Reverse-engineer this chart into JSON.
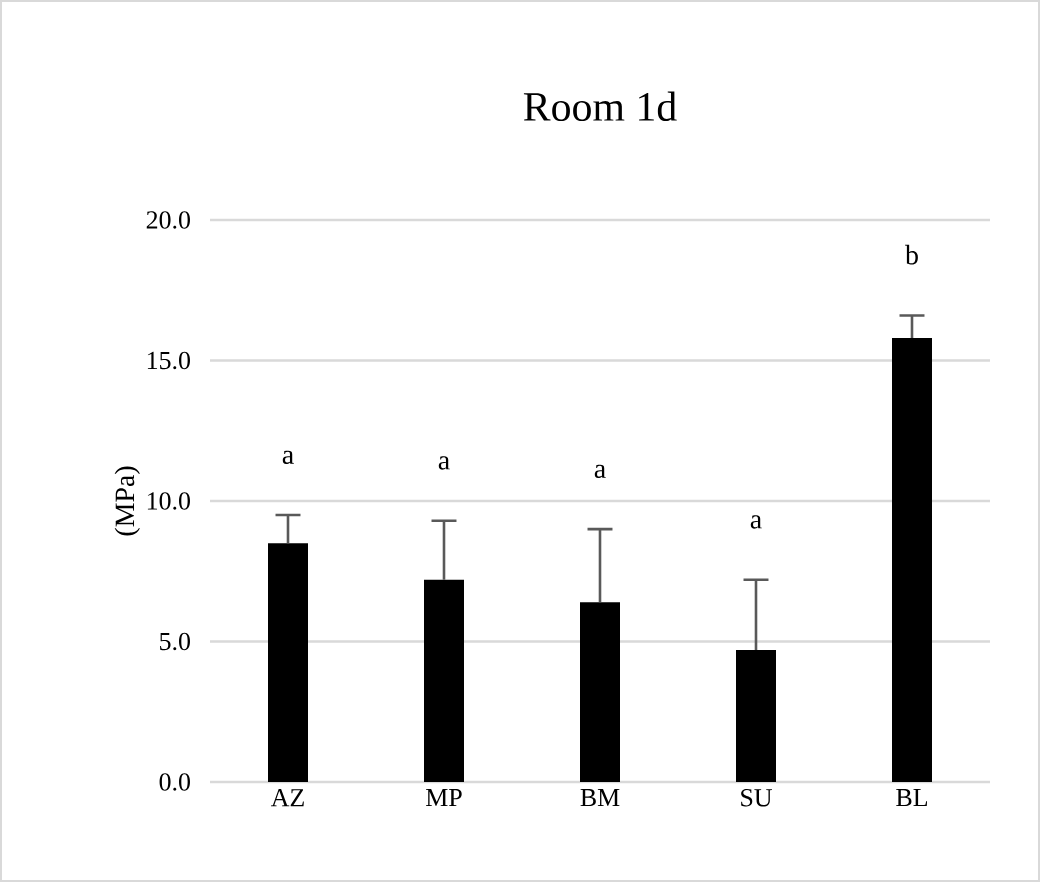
{
  "chart_data": {
    "type": "bar",
    "title": "Room 1d",
    "ylabel": "(MPa)",
    "categories": [
      "AZ",
      "MP",
      "BM",
      "SU",
      "BL"
    ],
    "values": [
      8.5,
      7.2,
      6.4,
      4.7,
      15.8
    ],
    "errors": [
      [
        8.5,
        9.5
      ],
      [
        7.2,
        9.3
      ],
      [
        6.4,
        9.0
      ],
      [
        4.7,
        7.2
      ],
      [
        15.8,
        16.6
      ]
    ],
    "color": "#000000",
    "ylim": [
      0,
      20
    ],
    "yticks": [
      {
        "value": 0,
        "label": "0.0"
      },
      {
        "value": 5,
        "label": "5.0"
      },
      {
        "value": 10,
        "label": "10.0"
      },
      {
        "value": 15,
        "label": "15.0"
      },
      {
        "value": 20,
        "label": "20.0"
      }
    ],
    "grid": "y",
    "annotations": [
      "a",
      "a",
      "a",
      "a",
      "b"
    ]
  }
}
